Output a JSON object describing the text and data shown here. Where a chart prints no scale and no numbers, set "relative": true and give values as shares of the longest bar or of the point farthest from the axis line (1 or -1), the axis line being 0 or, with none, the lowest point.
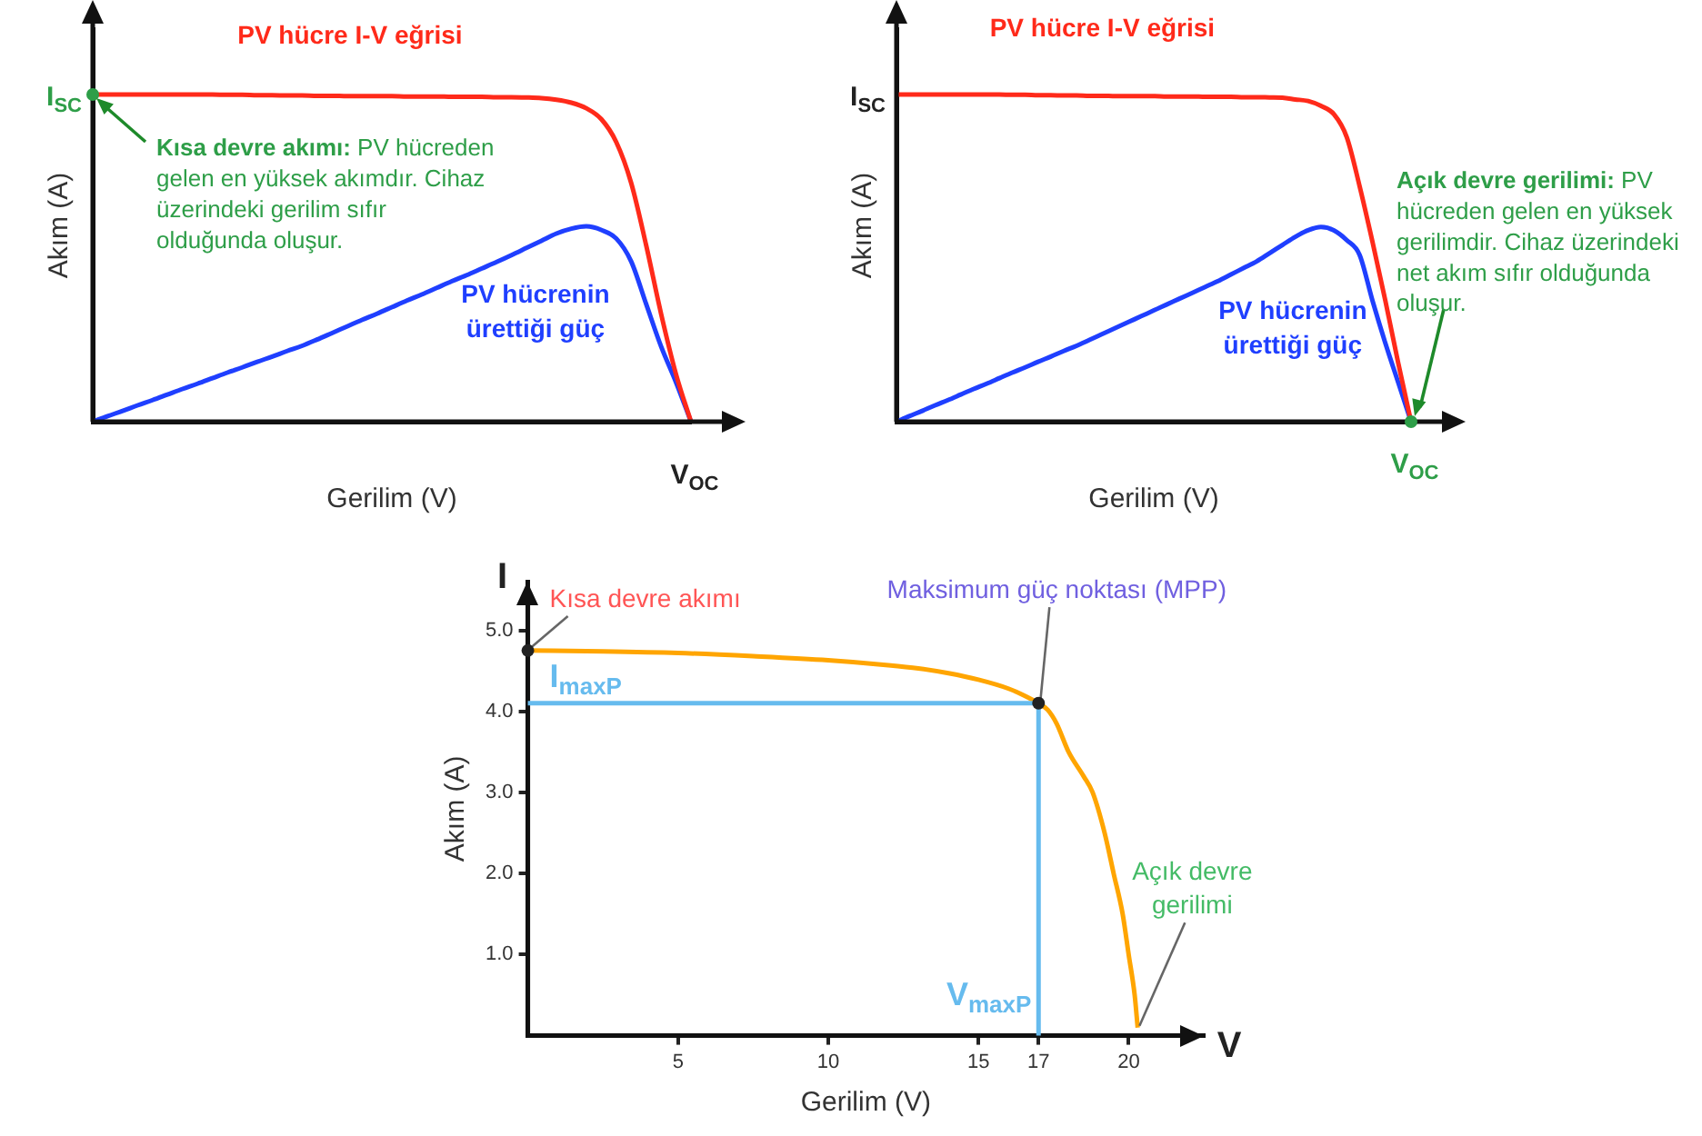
{
  "chart_data": [
    {
      "type": "line",
      "relative": true,
      "xlabel": "Gerilim (V)",
      "ylabel": "Akım (A)",
      "legend": false,
      "grid": false,
      "marker": "none",
      "line_style": "solid",
      "categories": [
        null,
        null,
        null,
        null,
        null,
        null,
        null,
        null,
        null,
        null,
        null,
        null,
        null,
        null,
        null,
        null,
        null,
        null,
        null,
        null,
        null,
        null,
        null,
        null,
        null,
        null,
        null,
        null,
        null,
        null,
        null,
        null,
        null,
        null,
        null,
        null,
        null,
        null,
        null,
        null,
        null
      ],
      "series": [
        {
          "name": "PV hücre I-V eğrisi",
          "color": "#ff2a1a",
          "values": [
            1,
            1,
            1,
            1,
            1,
            1,
            1,
            1,
            1,
            0.999,
            0.999,
            0.998,
            0.998,
            0.997,
            0.997,
            0.996,
            0.996,
            0.995,
            0.995,
            0.995,
            0.995,
            0.994,
            0.994,
            0.994,
            0.993,
            0.993,
            0.993,
            0.992,
            0.992,
            0.991,
            0.989,
            0.984,
            0.975,
            0.958,
            0.925,
            0.855,
            0.73,
            0.54,
            0.33,
            0.145,
            0
          ]
        },
        {
          "name": "PV hücrenin ürettiği güç",
          "color": "#1f3fff",
          "values": [
            0,
            0.017,
            0.033,
            0.05,
            0.066,
            0.083,
            0.1,
            0.116,
            0.133,
            0.15,
            0.166,
            0.183,
            0.199,
            0.216,
            0.232,
            0.251,
            0.271,
            0.291,
            0.311,
            0.33,
            0.35,
            0.37,
            0.389,
            0.409,
            0.429,
            0.448,
            0.468,
            0.488,
            0.509,
            0.531,
            0.553,
            0.575,
            0.59,
            0.597,
            0.586,
            0.56,
            0.49,
            0.36,
            0.23,
            0.12,
            0
          ]
        }
      ],
      "annotations": [
        "I$_{SC}$",
        "V$_{OC}$",
        "Kısa devre akımı: PV hücreden gelen en yüksek akımdır. Cihaz üzerindeki gerilim sıfır olduğunda oluşur."
      ]
    },
    {
      "type": "line",
      "relative": true,
      "xlabel": "Gerilim (V)",
      "ylabel": "Akım (A)",
      "legend": false,
      "grid": false,
      "marker": "none",
      "line_style": "solid",
      "categories": [
        null,
        null,
        null,
        null,
        null,
        null,
        null,
        null,
        null,
        null,
        null,
        null,
        null,
        null,
        null,
        null,
        null,
        null,
        null,
        null,
        null,
        null,
        null,
        null,
        null,
        null,
        null,
        null,
        null,
        null,
        null,
        null,
        null,
        null,
        null,
        null,
        null,
        null,
        null,
        null,
        null
      ],
      "series": [
        {
          "name": "PV hücre I-V eğrisi",
          "color": "#ff2a1a",
          "values": [
            1,
            1,
            1,
            1,
            1,
            1,
            1,
            1,
            1,
            0.999,
            0.999,
            0.998,
            0.998,
            0.997,
            0.997,
            0.996,
            0.996,
            0.995,
            0.995,
            0.995,
            0.995,
            0.994,
            0.994,
            0.994,
            0.993,
            0.993,
            0.993,
            0.992,
            0.992,
            0.991,
            0.99,
            0.985,
            0.98,
            0.965,
            0.94,
            0.87,
            0.72,
            0.55,
            0.37,
            0.18,
            0
          ]
        },
        {
          "name": "PV hücrenin ürettiği güç",
          "color": "#1f3fff",
          "values": [
            0,
            0.017,
            0.033,
            0.05,
            0.066,
            0.083,
            0.1,
            0.116,
            0.133,
            0.15,
            0.166,
            0.183,
            0.199,
            0.216,
            0.232,
            0.25,
            0.268,
            0.286,
            0.304,
            0.322,
            0.34,
            0.358,
            0.376,
            0.394,
            0.412,
            0.43,
            0.45,
            0.47,
            0.49,
            0.515,
            0.54,
            0.565,
            0.585,
            0.595,
            0.585,
            0.555,
            0.51,
            0.37,
            0.24,
            0.12,
            0
          ]
        }
      ],
      "annotations": [
        "I$_{SC}$",
        "V$_{OC}$",
        "Açık devre gerilimi: PV hücreden gelen en yüksek gerilimdir. Cihaz üzerindeki net akım sıfır olduğunda oluşur."
      ]
    },
    {
      "type": "line",
      "xlabel": "Gerilim (V)",
      "ylabel": "Akım (A)",
      "legend": false,
      "grid": false,
      "marker": "none",
      "line_style": "solid",
      "xlim": [
        0,
        22.5
      ],
      "ylim": [
        0,
        5.6
      ],
      "xticks": [
        5,
        10,
        15,
        17,
        20
      ],
      "yticks": [
        {
          "value": 1,
          "label": "1.0"
        },
        {
          "value": 2,
          "label": "2.0"
        },
        {
          "value": 3,
          "label": "3.0"
        },
        {
          "value": 4,
          "label": "4.0"
        },
        {
          "value": 5,
          "label": "5.0"
        }
      ],
      "series": [
        {
          "color": "#ffa500",
          "x": [
            0,
            2.5,
            5,
            7.5,
            10,
            12,
            13,
            14,
            15,
            16,
            16.5,
            17,
            17.3,
            17.6,
            18,
            18.5,
            18.8,
            19.2,
            19.5,
            19.8,
            20,
            20.2,
            20.3
          ],
          "values": [
            4.75,
            4.74,
            4.72,
            4.68,
            4.63,
            4.57,
            4.53,
            4.47,
            4.39,
            4.28,
            4.2,
            4.1,
            4.02,
            3.85,
            3.5,
            3.2,
            3.0,
            2.5,
            2.0,
            1.5,
            1.0,
            0.5,
            0.1
          ]
        }
      ],
      "ref_lines": [
        {
          "axis": "y",
          "value": 4.1,
          "label": "I$_{maxP}$",
          "color": "#66bbee"
        },
        {
          "axis": "x",
          "value": 17,
          "label": "V$_{maxP}$",
          "color": "#66bbee"
        }
      ],
      "annotations": [
        "I",
        "V",
        {
          "text": "Kısa devre akımı",
          "x": 0,
          "y": 4.75
        },
        {
          "text": "Maksimum güç noktası (MPP)",
          "x": 17,
          "y": 4.1
        },
        {
          "text": "Açık devre gerilimi",
          "x": 20.3,
          "y": 0.1
        }
      ]
    }
  ]
}
